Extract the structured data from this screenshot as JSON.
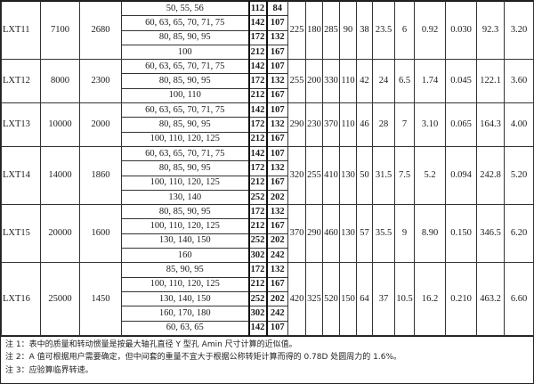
{
  "table": {
    "groups": [
      {
        "model": "LXT11",
        "torque": "7100",
        "speed": "2680",
        "bores": [
          {
            "d": "50, 55, 56",
            "l1": "112",
            "l2": "84"
          },
          {
            "d": "60, 63, 65, 70, 71, 75",
            "l1": "142",
            "l2": "107"
          },
          {
            "d": "80, 85, 90, 95",
            "l1": "172",
            "l2": "132"
          },
          {
            "d": "100",
            "l1": "212",
            "l2": "167"
          }
        ],
        "values": [
          "225",
          "180",
          "285",
          "90",
          "38",
          "23.5",
          "6",
          "0.92",
          "0.030",
          "92.3",
          "3.20"
        ]
      },
      {
        "model": "LXT12",
        "torque": "8000",
        "speed": "2300",
        "bores": [
          {
            "d": "60, 63, 65, 70, 71, 75",
            "l1": "142",
            "l2": "107"
          },
          {
            "d": "80, 85, 90, 95",
            "l1": "172",
            "l2": "132"
          },
          {
            "d": "100, 110",
            "l1": "212",
            "l2": "167"
          }
        ],
        "values": [
          "255",
          "200",
          "330",
          "110",
          "42",
          "24",
          "6.5",
          "1.74",
          "0.045",
          "122.1",
          "3.60"
        ]
      },
      {
        "model": "LXT13",
        "torque": "10000",
        "speed": "2000",
        "bores": [
          {
            "d": "60, 63, 65, 70, 71, 75",
            "l1": "142",
            "l2": "107"
          },
          {
            "d": "80, 85, 90, 95",
            "l1": "172",
            "l2": "132"
          },
          {
            "d": "100, 110, 120, 125",
            "l1": "212",
            "l2": "167"
          }
        ],
        "values": [
          "290",
          "230",
          "370",
          "110",
          "46",
          "28",
          "7",
          "3.10",
          "0.065",
          "164.3",
          "4.00"
        ]
      },
      {
        "model": "LXT14",
        "torque": "14000",
        "speed": "1860",
        "bores": [
          {
            "d": "60, 63, 65, 70, 71, 75",
            "l1": "142",
            "l2": "107"
          },
          {
            "d": "80, 85, 90, 95",
            "l1": "172",
            "l2": "132"
          },
          {
            "d": "100, 110, 120, 125",
            "l1": "212",
            "l2": "167"
          },
          {
            "d": "130, 140",
            "l1": "252",
            "l2": "202"
          }
        ],
        "values": [
          "320",
          "255",
          "410",
          "130",
          "50",
          "31.5",
          "7.5",
          "5.2",
          "0.094",
          "242.8",
          "5.20"
        ]
      },
      {
        "model": "LXT15",
        "torque": "20000",
        "speed": "1600",
        "bores": [
          {
            "d": "80, 85, 90, 95",
            "l1": "172",
            "l2": "132"
          },
          {
            "d": "100, 110, 120, 125",
            "l1": "212",
            "l2": "167"
          },
          {
            "d": "130, 140, 150",
            "l1": "252",
            "l2": "202"
          },
          {
            "d": "160",
            "l1": "302",
            "l2": "242"
          }
        ],
        "values": [
          "370",
          "290",
          "460",
          "130",
          "57",
          "35.5",
          "9",
          "8.90",
          "0.150",
          "346.5",
          "6.20"
        ]
      },
      {
        "model": "LXT16",
        "torque": "25000",
        "speed": "1450",
        "bores": [
          {
            "d": "85, 90, 95",
            "l1": "172",
            "l2": "132"
          },
          {
            "d": "100, 110, 120, 125",
            "l1": "212",
            "l2": "167"
          },
          {
            "d": "130, 140, 150",
            "l1": "252",
            "l2": "202"
          },
          {
            "d": "160, 170, 180",
            "l1": "302",
            "l2": "242"
          },
          {
            "d": "60, 63, 65",
            "l1": "142",
            "l2": "107"
          }
        ],
        "values": [
          "420",
          "325",
          "520",
          "150",
          "64",
          "37",
          "10.5",
          "16.2",
          "0.210",
          "463.2",
          "6.60"
        ]
      }
    ]
  },
  "notes": [
    "注 1：表中的质量和转动惯量是按最大轴孔直径 Y 型孔 Amin 尺寸计算的近似值。",
    "注 2：A 值可根据用户需要确定，但中间套的重量不宜大于根据公称转矩计算而得的 0.78D 处圆周力的 1.6%。",
    "注 3：应验算临界转速。"
  ]
}
